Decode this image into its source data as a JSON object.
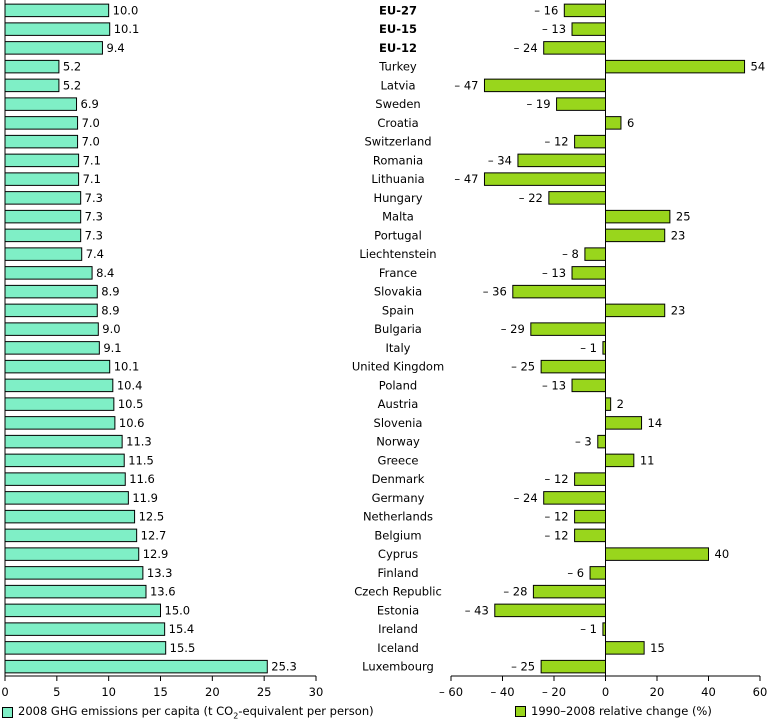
{
  "chart_data": [
    {
      "type": "bar",
      "orientation": "horizontal",
      "categories": [
        "EU-27",
        "EU-15",
        "EU-12",
        "Turkey",
        "Latvia",
        "Sweden",
        "Croatia",
        "Switzerland",
        "Romania",
        "Lithuania",
        "Hungary",
        "Malta",
        "Portugal",
        "Liechtenstein",
        "France",
        "Slovakia",
        "Spain",
        "Bulgaria",
        "Italy",
        "United Kingdom",
        "Poland",
        "Austria",
        "Slovenia",
        "Norway",
        "Greece",
        "Denmark",
        "Germany",
        "Netherlands",
        "Belgium",
        "Cyprus",
        "Finland",
        "Czech Republic",
        "Estonia",
        "Ireland",
        "Iceland",
        "Luxembourg"
      ],
      "bold_categories": [
        "EU-27",
        "EU-15",
        "EU-12"
      ],
      "series": [
        {
          "name": "2008 GHG emissions per capita (t CO2-equivalent per person)",
          "values": [
            10.0,
            10.1,
            9.4,
            5.2,
            5.2,
            6.9,
            7.0,
            7.0,
            7.1,
            7.1,
            7.3,
            7.3,
            7.3,
            7.4,
            8.4,
            8.9,
            8.9,
            9.0,
            9.1,
            10.1,
            10.4,
            10.5,
            10.6,
            11.3,
            11.5,
            11.6,
            11.9,
            12.5,
            12.7,
            12.9,
            13.3,
            13.6,
            15.0,
            15.4,
            15.5,
            25.3
          ]
        }
      ],
      "value_labels": [
        "10.0",
        "10.1",
        "9.4",
        "5.2",
        "5.2",
        "6.9",
        "7.0",
        "7.0",
        "7.1",
        "7.1",
        "7.3",
        "7.3",
        "7.3",
        "7.4",
        "8.4",
        "8.9",
        "8.9",
        "9.0",
        "9.1",
        "10.1",
        "10.4",
        "10.5",
        "10.6",
        "11.3",
        "11.5",
        "11.6",
        "11.9",
        "12.5",
        "12.7",
        "12.9",
        "13.3",
        "13.6",
        "15.0",
        "15.4",
        "15.5",
        "25.3"
      ],
      "xlim": [
        0,
        30
      ],
      "xticks": [
        0,
        5,
        10,
        15,
        20,
        25,
        30
      ],
      "xtick_labels": [
        "0",
        "5",
        "10",
        "15",
        "20",
        "25",
        "30"
      ],
      "color": "#7fefc6",
      "legend_label": "2008 GHG emissions per capita (t CO",
      "legend_sub": "2",
      "legend_tail": "-equivalent per person)",
      "legend_position": "bottom-left",
      "grid": false
    },
    {
      "type": "bar",
      "orientation": "horizontal",
      "categories": [
        "EU-27",
        "EU-15",
        "EU-12",
        "Turkey",
        "Latvia",
        "Sweden",
        "Croatia",
        "Switzerland",
        "Romania",
        "Lithuania",
        "Hungary",
        "Malta",
        "Portugal",
        "Liechtenstein",
        "France",
        "Slovakia",
        "Spain",
        "Bulgaria",
        "Italy",
        "United Kingdom",
        "Poland",
        "Austria",
        "Slovenia",
        "Norway",
        "Greece",
        "Denmark",
        "Germany",
        "Netherlands",
        "Belgium",
        "Cyprus",
        "Finland",
        "Czech Republic",
        "Estonia",
        "Ireland",
        "Iceland",
        "Luxembourg"
      ],
      "series": [
        {
          "name": "1990–2008 relative change (%)",
          "values": [
            -16,
            -13,
            -24,
            54,
            -47,
            -19,
            6,
            -12,
            -34,
            -47,
            -22,
            25,
            23,
            -8,
            -13,
            -36,
            23,
            -29,
            -1,
            -25,
            -13,
            2,
            14,
            -3,
            11,
            -12,
            -24,
            -12,
            -12,
            40,
            -6,
            -28,
            -43,
            -1,
            15,
            -25
          ]
        }
      ],
      "value_labels": [
        "– 16",
        "– 13",
        "– 24",
        "54",
        "– 47",
        "– 19",
        "6",
        "– 12",
        "– 34",
        "– 47",
        "– 22",
        "25",
        "23",
        "– 8",
        "– 13",
        "– 36",
        "23",
        "– 29",
        "– 1",
        "– 25",
        "– 13",
        "2",
        "14",
        "– 3",
        "11",
        "– 12",
        "– 24",
        "– 12",
        "– 12",
        "40",
        "– 6",
        "– 28",
        "– 43",
        "– 1",
        "15",
        "– 25"
      ],
      "xlim": [
        -60,
        60
      ],
      "xticks": [
        -60,
        -40,
        -20,
        0,
        20,
        40,
        60
      ],
      "xtick_labels": [
        "– 60",
        "– 40",
        "– 20",
        "0",
        "20",
        "40",
        "60"
      ],
      "color": "#99d61c",
      "legend_label": "1990–2008 relative change (%)",
      "legend_position": "bottom-right",
      "grid": false
    }
  ]
}
